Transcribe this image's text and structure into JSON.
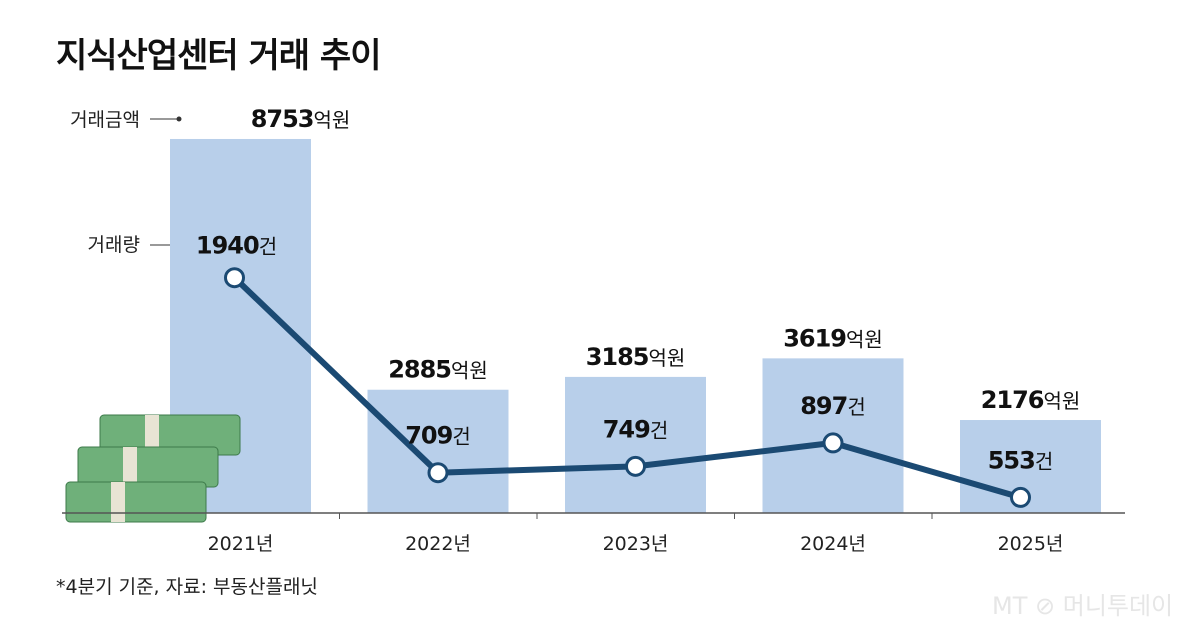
{
  "title": "지식산업센터 거래 추이",
  "note": "*4분기 기준, 자료: 부동산플래닛",
  "watermark": "MT 머니투데이",
  "colors": {
    "bar": "#b8cfea",
    "line": "#1b4a73",
    "text": "#111111"
  },
  "chart_data": {
    "type": "bar+line",
    "categories": [
      "2021년",
      "2022년",
      "2023년",
      "2024년",
      "2025년"
    ],
    "series": [
      {
        "name": "거래금액",
        "type": "bar",
        "unit": "억원",
        "values": [
          8753,
          2885,
          3185,
          3619,
          2176
        ]
      },
      {
        "name": "거래량",
        "type": "line",
        "unit": "건",
        "values": [
          1940,
          709,
          749,
          897,
          553
        ]
      }
    ],
    "legend_placement": "left (leader lines)",
    "grid": false
  }
}
